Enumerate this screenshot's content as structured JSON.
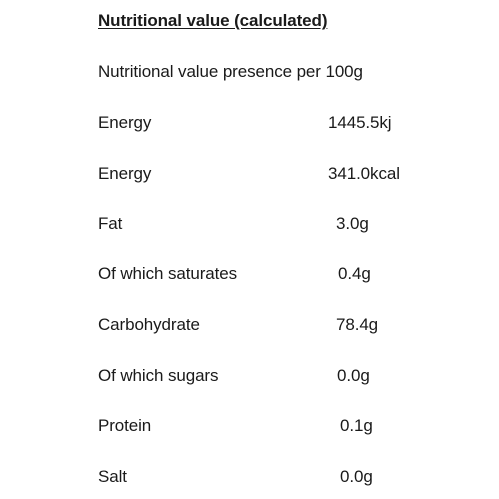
{
  "title": "Nutritional value (calculated)",
  "subtitle": "Nutritional value presence per 100g",
  "rows": [
    {
      "label": "Energy",
      "value": "1445.5kj"
    },
    {
      "label": "Energy",
      "value": "341.0kcal"
    },
    {
      "label": "Fat",
      "value": "3.0g"
    },
    {
      "label": "Of which saturates",
      "value": "0.4g"
    },
    {
      "label": "Carbohydrate",
      "value": "78.4g"
    },
    {
      "label": "Of which sugars",
      "value": "0.0g"
    },
    {
      "label": "Protein",
      "value": "0.1g"
    },
    {
      "label": "Salt",
      "value": "0.0g"
    }
  ]
}
